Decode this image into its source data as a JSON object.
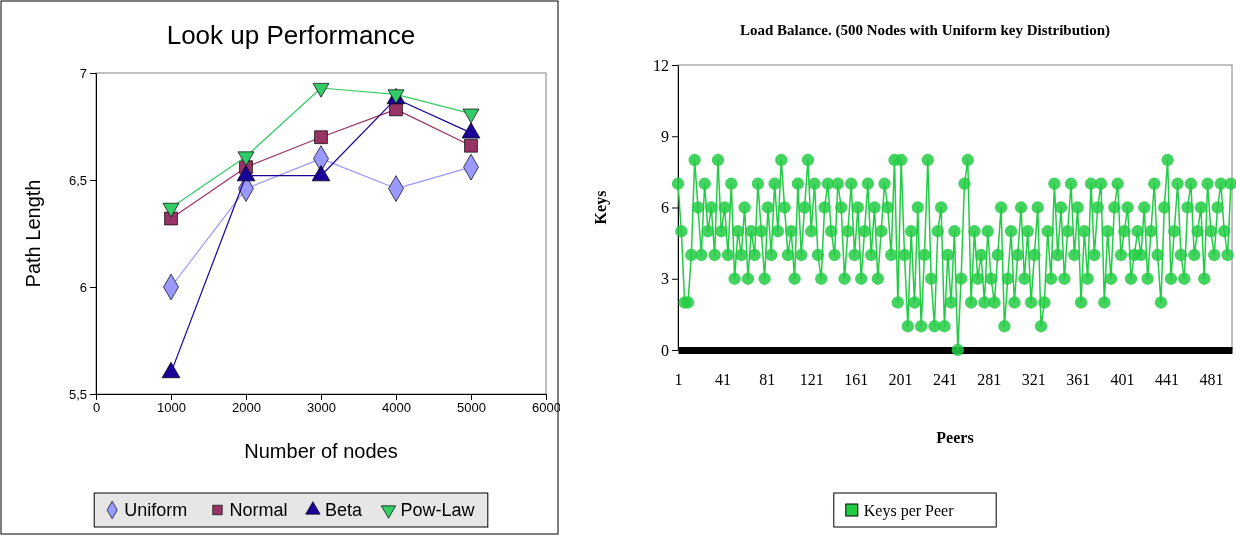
{
  "chart_data": [
    {
      "type": "line",
      "title": "Look up Performance",
      "xlabel": "Number of nodes",
      "ylabel": "Path Length",
      "x": [
        1000,
        2000,
        3000,
        4000,
        5000
      ],
      "xlim": [
        0,
        6000
      ],
      "xticks": [
        0,
        1000,
        2000,
        3000,
        4000,
        5000,
        6000
      ],
      "ylim": [
        5.5,
        7
      ],
      "yticks": [
        {
          "value": 5.5,
          "label": "5,5"
        },
        6,
        {
          "value": 6.5,
          "label": "6,5"
        },
        7
      ],
      "legend": "bottom",
      "series": [
        {
          "name": "Uniform",
          "color": "#9999ff",
          "marker": "diamond",
          "values": [
            6.0,
            6.46,
            6.6,
            6.46,
            6.56
          ]
        },
        {
          "name": "Normal",
          "color": "#993366",
          "marker": "square",
          "values": [
            6.32,
            6.56,
            6.7,
            6.83,
            6.66
          ]
        },
        {
          "name": "Beta",
          "color": "#1a0099",
          "marker": "triangle",
          "values": [
            5.6,
            6.52,
            6.52,
            6.88,
            6.72
          ]
        },
        {
          "name": "Pow-Law",
          "color": "#33cc66",
          "marker": "triangle-down",
          "values": [
            6.37,
            6.61,
            6.93,
            6.9,
            6.81
          ]
        }
      ]
    },
    {
      "type": "line",
      "title": "Load Balance. (500 Nodes with Uniform key Distribution)",
      "xlabel": "Peers",
      "ylabel": "Keys",
      "xlim": [
        1,
        500
      ],
      "xticks": [
        1,
        41,
        81,
        121,
        161,
        201,
        241,
        281,
        321,
        361,
        401,
        441,
        481
      ],
      "ylim": [
        0,
        12
      ],
      "yticks": [
        0,
        3,
        6,
        9,
        12
      ],
      "legend": "bottom",
      "marker": "circle",
      "series": [
        {
          "name": "Keys per Peer",
          "color": "#22cc44",
          "x": [
            1,
            4,
            7,
            10,
            13,
            16,
            19,
            22,
            25,
            28,
            31,
            34,
            37,
            40,
            43,
            46,
            49,
            52,
            55,
            58,
            61,
            64,
            67,
            70,
            73,
            76,
            79,
            82,
            85,
            88,
            91,
            94,
            97,
            100,
            103,
            106,
            109,
            112,
            115,
            118,
            121,
            124,
            127,
            130,
            133,
            136,
            139,
            142,
            145,
            148,
            151,
            154,
            157,
            160,
            163,
            166,
            169,
            172,
            175,
            178,
            181,
            184,
            187,
            190,
            193,
            196,
            199,
            202,
            205,
            208,
            211,
            214,
            217,
            220,
            223,
            226,
            229,
            232,
            235,
            238,
            241,
            244,
            247,
            250,
            253,
            256,
            259,
            262,
            265,
            268,
            271,
            274,
            277,
            280,
            283,
            286,
            289,
            292,
            295,
            298,
            301,
            304,
            307,
            310,
            313,
            316,
            319,
            322,
            325,
            328,
            331,
            334,
            337,
            340,
            343,
            346,
            349,
            352,
            355,
            358,
            361,
            364,
            367,
            370,
            373,
            376,
            379,
            382,
            385,
            388,
            391,
            394,
            397,
            400,
            403,
            406,
            409,
            412,
            415,
            418,
            421,
            424,
            427,
            430,
            433,
            436,
            439,
            442,
            445,
            448,
            451,
            454,
            457,
            460,
            463,
            466,
            469,
            472,
            475,
            478,
            481,
            484,
            487,
            490,
            493,
            496,
            499
          ],
          "values": [
            7,
            5,
            2,
            2,
            4,
            8,
            6,
            4,
            7,
            5,
            6,
            4,
            8,
            5,
            6,
            4,
            7,
            3,
            5,
            4,
            6,
            3,
            5,
            4,
            7,
            5,
            3,
            6,
            4,
            7,
            5,
            8,
            6,
            4,
            5,
            3,
            7,
            4,
            6,
            8,
            5,
            7,
            4,
            3,
            6,
            7,
            5,
            4,
            7,
            6,
            3,
            5,
            7,
            4,
            6,
            3,
            5,
            7,
            4,
            6,
            3,
            5,
            7,
            6,
            4,
            8,
            2,
            8,
            4,
            1,
            5,
            2,
            6,
            1,
            4,
            8,
            3,
            1,
            5,
            6,
            1,
            4,
            2,
            5,
            0,
            3,
            7,
            8,
            2,
            5,
            3,
            4,
            2,
            5,
            3,
            2,
            4,
            6,
            1,
            3,
            5,
            2,
            4,
            6,
            3,
            5,
            2,
            4,
            6,
            1,
            2,
            5,
            3,
            7,
            4,
            6,
            3,
            5,
            7,
            4,
            6,
            2,
            5,
            3,
            7,
            4,
            6,
            7,
            2,
            5,
            3,
            6,
            7,
            4,
            5,
            6,
            3,
            4,
            5,
            4,
            6,
            3,
            5,
            7,
            4,
            2,
            6,
            8,
            3,
            5,
            7,
            4,
            3,
            6,
            7,
            4,
            5,
            6,
            3,
            7,
            5,
            4,
            6,
            7,
            5,
            4,
            7
          ]
        }
      ]
    }
  ]
}
